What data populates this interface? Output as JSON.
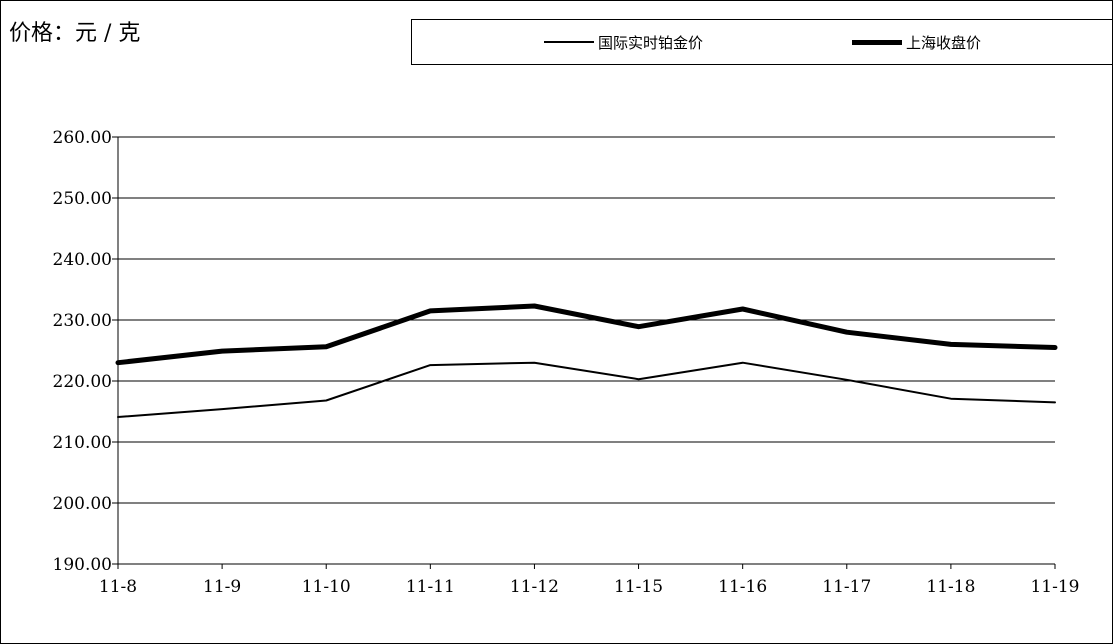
{
  "unit_label": "价格：元 / 克",
  "chart_data": {
    "type": "line",
    "title": "",
    "xlabel": "",
    "ylabel": "价格：元 / 克",
    "categories": [
      "11-8",
      "11-9",
      "11-10",
      "11-11",
      "11-12",
      "11-15",
      "11-16",
      "11-17",
      "11-18",
      "11-19"
    ],
    "ylim": [
      190,
      260
    ],
    "yticks": [
      "190.00",
      "200.00",
      "210.00",
      "220.00",
      "230.00",
      "240.00",
      "250.00",
      "260.00"
    ],
    "grid": "horizontal",
    "legend_position": "top",
    "series": [
      {
        "name": "国际实时铂金价",
        "color": "#000000",
        "style": "thin",
        "values": [
          214.1,
          215.4,
          216.8,
          222.6,
          223.0,
          220.3,
          223.0,
          220.2,
          217.1,
          216.5
        ]
      },
      {
        "name": "上海收盘价",
        "color": "#000000",
        "style": "thick",
        "values": [
          223.0,
          224.9,
          225.6,
          231.5,
          232.3,
          228.9,
          231.8,
          228.0,
          226.0,
          225.5
        ]
      }
    ]
  }
}
